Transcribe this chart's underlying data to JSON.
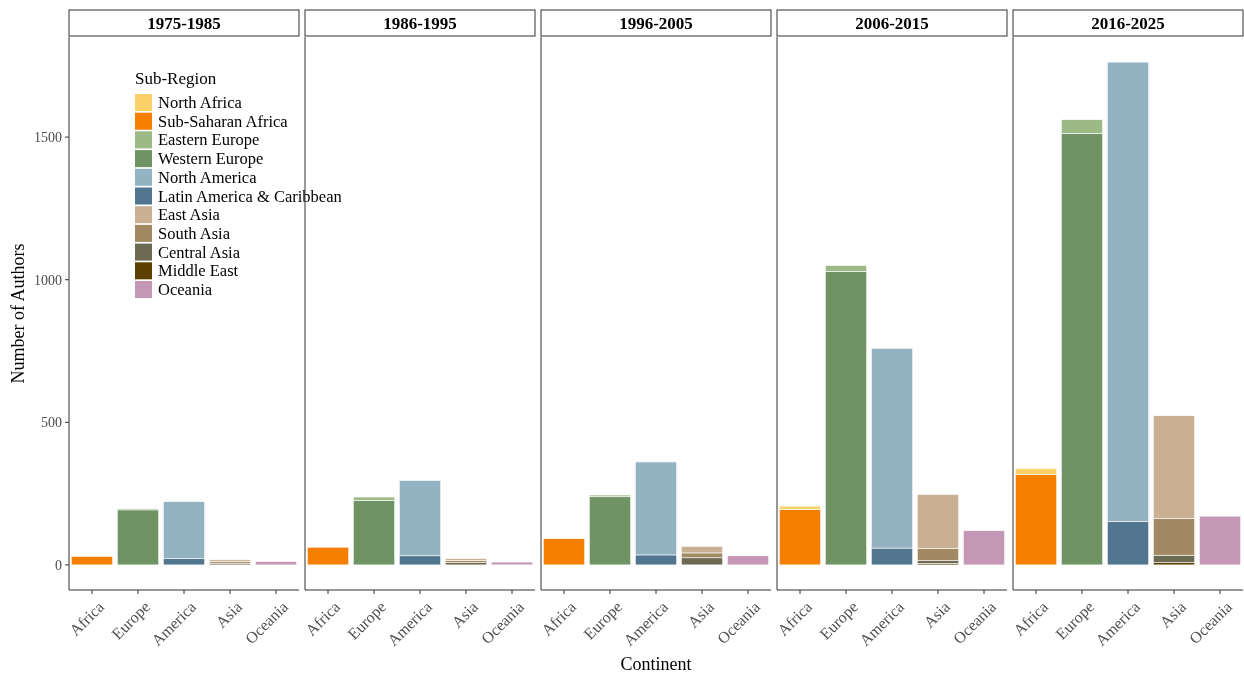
{
  "chart_data": [
    {
      "type": "bar",
      "stacked": true,
      "title": "1975-1985",
      "ylabel": "Number of Authors",
      "legend_title": "Sub-Region",
      "legend": "top right",
      "categories": [
        "Africa",
        "Europe",
        "America",
        "Asia",
        "Oceania"
      ],
      "ylim": [
        -88,
        1851
      ],
      "yticks": [
        0,
        500,
        1000,
        1500
      ],
      "series": [
        {
          "name": "Oceania",
          "color": "#c497b5",
          "values": [
            null,
            null,
            null,
            null,
            12
          ]
        },
        {
          "name": "Middle East",
          "color": "#5c4000",
          "values": [
            null,
            null,
            null,
            null,
            null
          ]
        },
        {
          "name": "Central Asia",
          "color": "#6c6a52",
          "values": [
            null,
            null,
            null,
            6,
            null
          ]
        },
        {
          "name": "South Asia",
          "color": "#a08963",
          "values": [
            null,
            null,
            null,
            6,
            null
          ]
        },
        {
          "name": "East Asia",
          "color": "#c9b092",
          "values": [
            null,
            null,
            null,
            6,
            null
          ]
        },
        {
          "name": "Latin America & Caribbean",
          "color": "#52768f",
          "values": [
            null,
            null,
            22,
            null,
            null
          ]
        },
        {
          "name": "North America",
          "color": "#94b3c2",
          "values": [
            null,
            null,
            200,
            null,
            null
          ]
        },
        {
          "name": "Western Europe",
          "color": "#709366",
          "values": [
            null,
            193,
            null,
            null,
            null
          ]
        },
        {
          "name": "Eastern Europe",
          "color": "#9cba85",
          "values": [
            null,
            4,
            null,
            null,
            null
          ]
        },
        {
          "name": "Sub-Saharan Africa",
          "color": "#f77f00",
          "values": [
            30,
            null,
            null,
            null,
            null
          ]
        },
        {
          "name": "North Africa",
          "color": "#fdd16a",
          "values": [
            null,
            null,
            null,
            null,
            null
          ]
        }
      ]
    },
    {
      "type": "bar",
      "stacked": true,
      "title": "1986-1995",
      "tick_labels": "x",
      "categories": [
        "Africa",
        "Europe",
        "America",
        "Asia",
        "Oceania"
      ],
      "ylim": [
        -88,
        1851
      ],
      "series": [
        {
          "color": "#c497b5",
          "values": [
            null,
            null,
            null,
            null,
            10
          ]
        },
        {
          "color": "#6c6a52",
          "values": [
            null,
            null,
            null,
            8,
            null
          ]
        },
        {
          "color": "#a08963",
          "values": [
            null,
            null,
            null,
            8,
            null
          ]
        },
        {
          "color": "#c9b092",
          "values": [
            null,
            null,
            null,
            6,
            null
          ]
        },
        {
          "color": "#52768f",
          "values": [
            null,
            null,
            32,
            null,
            null
          ]
        },
        {
          "color": "#94b3c2",
          "values": [
            null,
            null,
            264,
            null,
            null
          ]
        },
        {
          "color": "#709366",
          "values": [
            null,
            226,
            null,
            null,
            null
          ]
        },
        {
          "color": "#9cba85",
          "values": [
            null,
            12,
            null,
            null,
            null
          ]
        },
        {
          "color": "#f77f00",
          "values": [
            62,
            null,
            null,
            null,
            null
          ]
        }
      ]
    },
    {
      "type": "bar",
      "stacked": true,
      "title": "1996-2005",
      "xlabel": "Continent",
      "tick_labels": "x",
      "categories": [
        "Africa",
        "Europe",
        "America",
        "Asia",
        "Oceania"
      ],
      "ylim": [
        -88,
        1851
      ],
      "series": [
        {
          "color": "#c497b5",
          "values": [
            null,
            null,
            null,
            null,
            32
          ]
        },
        {
          "color": "#6c6a52",
          "values": [
            null,
            null,
            null,
            25,
            null
          ]
        },
        {
          "color": "#a08963",
          "values": [
            null,
            null,
            null,
            17,
            null
          ]
        },
        {
          "color": "#c9b092",
          "values": [
            null,
            null,
            null,
            23,
            null
          ]
        },
        {
          "color": "#52768f",
          "values": [
            null,
            null,
            35,
            null,
            null
          ]
        },
        {
          "color": "#94b3c2",
          "values": [
            null,
            null,
            326,
            null,
            null
          ]
        },
        {
          "color": "#709366",
          "values": [
            null,
            239,
            null,
            null,
            null
          ]
        },
        {
          "color": "#9cba85",
          "values": [
            null,
            6,
            null,
            null,
            null
          ]
        },
        {
          "color": "#f77f00",
          "values": [
            92,
            null,
            null,
            null,
            null
          ]
        }
      ]
    },
    {
      "type": "bar",
      "stacked": true,
      "title": "2006-2015",
      "tick_labels": "x",
      "categories": [
        "Africa",
        "Europe",
        "America",
        "Asia",
        "Oceania"
      ],
      "ylim": [
        -88,
        1851
      ],
      "series": [
        {
          "color": "#c497b5",
          "values": [
            null,
            null,
            null,
            null,
            120
          ]
        },
        {
          "color": "#5c4000",
          "values": [
            null,
            null,
            null,
            5,
            null
          ]
        },
        {
          "color": "#6c6a52",
          "values": [
            null,
            null,
            null,
            10,
            null
          ]
        },
        {
          "color": "#a08963",
          "values": [
            null,
            null,
            null,
            42,
            null
          ]
        },
        {
          "color": "#c9b092",
          "values": [
            null,
            null,
            null,
            190,
            null
          ]
        },
        {
          "color": "#52768f",
          "values": [
            null,
            null,
            59,
            null,
            null
          ]
        },
        {
          "color": "#94b3c2",
          "values": [
            null,
            null,
            700,
            null,
            null
          ]
        },
        {
          "color": "#709366",
          "values": [
            null,
            1029,
            null,
            null,
            null
          ]
        },
        {
          "color": "#9cba85",
          "values": [
            null,
            21,
            null,
            null,
            null
          ]
        },
        {
          "color": "#f77f00",
          "values": [
            194,
            null,
            null,
            null,
            null
          ]
        },
        {
          "color": "#fdd16a",
          "values": [
            12,
            null,
            null,
            null,
            null
          ]
        }
      ]
    },
    {
      "type": "bar",
      "stacked": true,
      "title": "2016-2025",
      "tick_labels": "x",
      "categories": [
        "Africa",
        "Europe",
        "America",
        "Asia",
        "Oceania"
      ],
      "ylim": [
        -88,
        1851
      ],
      "series": [
        {
          "color": "#c497b5",
          "values": [
            null,
            null,
            null,
            null,
            171
          ]
        },
        {
          "color": "#5c4000",
          "values": [
            null,
            null,
            null,
            8,
            null
          ]
        },
        {
          "color": "#6c6a52",
          "values": [
            null,
            null,
            null,
            26,
            null
          ]
        },
        {
          "color": "#a08963",
          "values": [
            null,
            null,
            null,
            128,
            null
          ]
        },
        {
          "color": "#c9b092",
          "values": [
            null,
            null,
            null,
            361,
            null
          ]
        },
        {
          "color": "#52768f",
          "values": [
            null,
            null,
            152,
            null,
            null
          ]
        },
        {
          "color": "#94b3c2",
          "values": [
            null,
            null,
            1611,
            null,
            null
          ]
        },
        {
          "color": "#709366",
          "values": [
            null,
            1513,
            null,
            null,
            null
          ]
        },
        {
          "color": "#9cba85",
          "values": [
            null,
            48,
            null,
            null,
            null
          ]
        },
        {
          "color": "#f77f00",
          "values": [
            317,
            null,
            null,
            null,
            null
          ]
        },
        {
          "color": "#fdd16a",
          "values": [
            21,
            null,
            null,
            null,
            null
          ]
        }
      ]
    }
  ]
}
